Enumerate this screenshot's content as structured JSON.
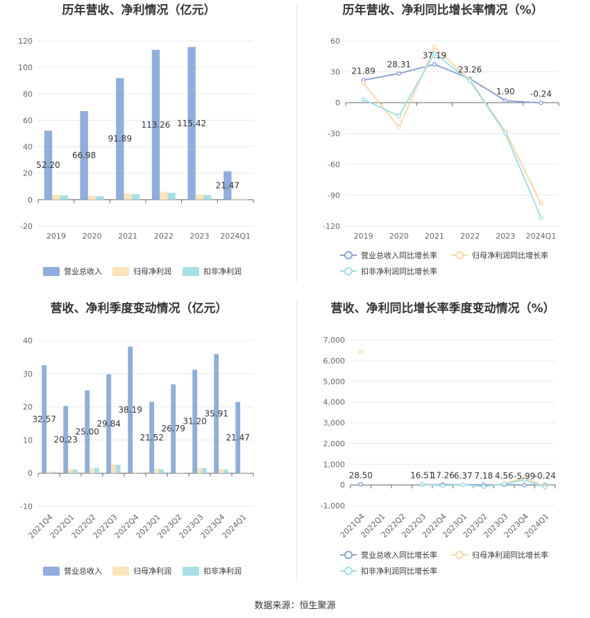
{
  "colors": {
    "revenue": "#8eaedd",
    "net_profit": "#fde3b8",
    "deducted_profit": "#a6e0e6",
    "revenue_line": "#8aa5d3",
    "net_line": "#fad8a4",
    "deducted_line": "#9ee0e8",
    "grid": "#e6e8f0",
    "axis": "#666666"
  },
  "source": "数据来源：恒生聚源",
  "chart_data": [
    {
      "id": "annual_bar",
      "type": "bar",
      "title": "历年营收、净利情况（亿元）",
      "categories": [
        "2019",
        "2020",
        "2021",
        "2022",
        "2023",
        "2024Q1"
      ],
      "ylim": [
        -20,
        120
      ],
      "yticks": [
        -20,
        0,
        20,
        40,
        60,
        80,
        100,
        120
      ],
      "grid": true,
      "legend": "bottom",
      "series": [
        {
          "name": "营业总收入",
          "values": [
            52.2,
            66.98,
            91.89,
            113.26,
            115.42,
            21.47
          ],
          "labels": [
            "52.20",
            "66.98",
            "91.89",
            "113.26",
            "115.42",
            "21.47"
          ]
        },
        {
          "name": "归母净利润",
          "values": [
            3.7,
            2.9,
            4.6,
            5.9,
            3.9,
            0.3
          ]
        },
        {
          "name": "扣非净利润",
          "values": [
            3.3,
            2.6,
            4.0,
            5.2,
            3.5,
            0.2
          ]
        }
      ]
    },
    {
      "id": "annual_line",
      "type": "line",
      "title": "历年营收、净利同比增长率情况（%）",
      "categories": [
        "2019",
        "2020",
        "2021",
        "2022",
        "2023",
        "2024Q1"
      ],
      "ylim": [
        -120,
        60
      ],
      "yticks": [
        -120,
        -90,
        -60,
        -30,
        0,
        30,
        60
      ],
      "grid": true,
      "legend": "bottom",
      "series": [
        {
          "name": "营业总收入同比增长率",
          "values": [
            21.89,
            28.31,
            37.19,
            23.26,
            1.9,
            -0.24
          ],
          "labels": [
            "21.89",
            "28.31",
            "37.19",
            "23.26",
            "1.90",
            "-0.24"
          ]
        },
        {
          "name": "归母净利润同比增长率",
          "values": [
            19.0,
            -24.0,
            54.0,
            22.0,
            -28.0,
            -98.0
          ]
        },
        {
          "name": "扣非净利润同比增长率",
          "values": [
            3.0,
            -13.0,
            48.0,
            21.0,
            -30.0,
            -112.0
          ]
        }
      ]
    },
    {
      "id": "quarter_bar",
      "type": "bar",
      "title": "营收、净利季度变动情况（亿元）",
      "categories": [
        "2021Q4",
        "2022Q1",
        "2022Q2",
        "2022Q3",
        "2022Q4",
        "2023Q1",
        "2023Q2",
        "2023Q3",
        "2023Q4",
        "2024Q1"
      ],
      "ylim": [
        -10,
        40
      ],
      "yticks": [
        -10,
        0,
        10,
        20,
        30,
        40
      ],
      "grid": true,
      "legend": "bottom",
      "series": [
        {
          "name": "营业总收入",
          "values": [
            32.57,
            20.23,
            25.0,
            29.84,
            38.19,
            21.52,
            26.79,
            31.2,
            35.91,
            21.47
          ],
          "labels": [
            "32.57",
            "20.23",
            "25.00",
            "29.84",
            "38.19",
            "21.52",
            "26.79",
            "31.20",
            "35.91",
            "21.47"
          ]
        },
        {
          "name": "归母净利润",
          "values": [
            0.5,
            1.3,
            1.5,
            2.6,
            0.3,
            1.3,
            0.2,
            1.6,
            1.3,
            0.1
          ]
        },
        {
          "name": "扣非净利润",
          "values": [
            0.4,
            1.1,
            1.6,
            2.5,
            0.2,
            1.2,
            0.1,
            1.5,
            1.1,
            0.1
          ]
        }
      ]
    },
    {
      "id": "quarter_line",
      "type": "line",
      "title": "营收、净利同比增长率季度变动情况（%）",
      "categories": [
        "2021Q4",
        "2022Q1",
        "2022Q2",
        "2022Q3",
        "2022Q4",
        "2023Q1",
        "2023Q2",
        "2023Q3",
        "2023Q4",
        "2024Q1"
      ],
      "ylim": [
        -1000,
        7000
      ],
      "yticks": [
        -1000,
        0,
        1000,
        2000,
        3000,
        4000,
        5000,
        6000,
        7000
      ],
      "ytick_labels": [
        "-1,000",
        "0",
        "1,000",
        "2,000",
        "3,000",
        "4,000",
        "5,000",
        "6,000",
        "7,000"
      ],
      "grid": true,
      "legend": "bottom",
      "series": [
        {
          "name": "营业总收入同比增长率",
          "values": [
            28.5,
            null,
            null,
            16.51,
            17.26,
            6.37,
            7.18,
            4.56,
            -5.99,
            -0.24
          ],
          "labels": [
            "28.50",
            "",
            "",
            "16.51",
            "17.26",
            "6.37",
            "7.18",
            "4.56",
            "-5.99",
            "-0.24"
          ]
        },
        {
          "name": "归母净利润同比增长率",
          "values": [
            6420,
            null,
            null,
            40,
            -30,
            5,
            -80,
            60,
            350,
            -70
          ]
        },
        {
          "name": "扣非净利润同比增长率",
          "values": [
            null,
            null,
            null,
            30,
            -40,
            10,
            -90,
            40,
            250,
            -110
          ]
        }
      ]
    }
  ]
}
